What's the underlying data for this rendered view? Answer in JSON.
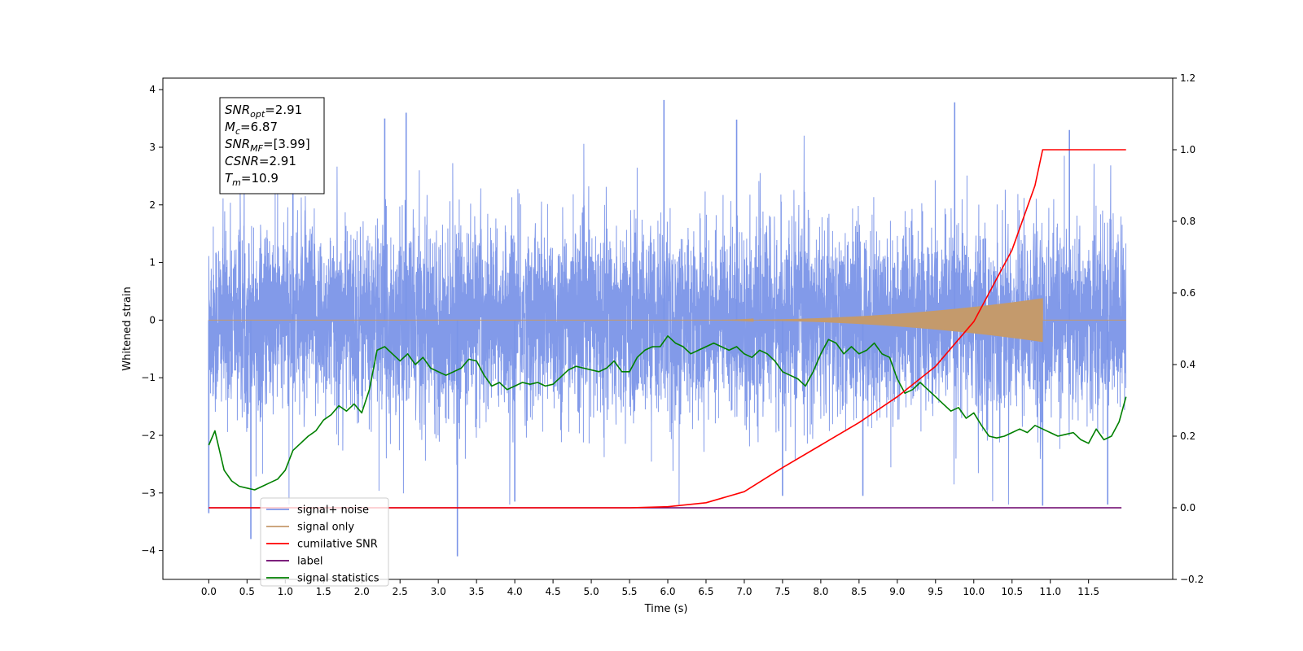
{
  "chart_data": {
    "type": "line",
    "xlabel": "Time (s)",
    "ylabel": "Whitened strain",
    "xlim": [
      -0.6,
      12.6
    ],
    "ylim": [
      -4.5,
      4.2
    ],
    "y2lim": [
      -0.2,
      1.2
    ],
    "xticks": [
      0.0,
      0.5,
      1.0,
      1.5,
      2.0,
      2.5,
      3.0,
      3.5,
      4.0,
      4.5,
      5.0,
      5.5,
      6.0,
      6.5,
      7.0,
      7.5,
      8.0,
      8.5,
      9.0,
      9.5,
      10.0,
      10.5,
      11.0,
      11.5
    ],
    "xtick_labels": [
      "0.0",
      "0.5",
      "1.0",
      "1.5",
      "2.0",
      "2.5",
      "3.0",
      "3.5",
      "4.0",
      "4.5",
      "5.0",
      "5.5",
      "6.0",
      "6.5",
      "7.0",
      "7.5",
      "8.0",
      "8.5",
      "9.0",
      "9.5",
      "10.0",
      "10.5",
      "11.0",
      "11.5"
    ],
    "yticks": [
      4,
      3,
      2,
      1,
      0,
      -1,
      -2,
      -3,
      -4
    ],
    "ytick_labels": [
      "4",
      "3",
      "2",
      "1",
      "0",
      "−1",
      "−2",
      "−3",
      "−4"
    ],
    "y2ticks": [
      1.2,
      1.0,
      0.8,
      0.6,
      0.4,
      0.2,
      0.0,
      -0.2
    ],
    "y2tick_labels": [
      "1.2",
      "1.0",
      "0.8",
      "0.6",
      "0.4",
      "0.2",
      "0.0",
      "−0.2"
    ],
    "legend_position": "lower-left",
    "info_box_position": "top-left",
    "info_box": [
      {
        "sym": "SNR",
        "sub": "opt",
        "val": "=2.91"
      },
      {
        "sym": "M",
        "sub": "c",
        "val": "=6.87"
      },
      {
        "sym": "SNR",
        "sub": "MF",
        "val": "=[3.99]"
      },
      {
        "sym": "CSNR",
        "sub": "",
        "val": "=2.91"
      },
      {
        "sym": "T",
        "sub": "m",
        "val": "=10.9"
      }
    ],
    "series": [
      {
        "name": "signal+ noise",
        "color": "#7b95e8",
        "axis": "left",
        "x_range": [
          0.0,
          11.99
        ],
        "noise_model": {
          "sigma": 0.8
        },
        "spikes": [
          {
            "x": 0.0,
            "y": -3.35
          },
          {
            "x": 0.55,
            "y": -3.8
          },
          {
            "x": 2.58,
            "y": 3.6
          },
          {
            "x": 3.25,
            "y": -4.1
          },
          {
            "x": 4.0,
            "y": -3.15
          },
          {
            "x": 5.95,
            "y": 3.82
          },
          {
            "x": 6.9,
            "y": 3.48
          },
          {
            "x": 9.75,
            "y": 3.78
          },
          {
            "x": 10.9,
            "y": -3.22
          },
          {
            "x": 11.25,
            "y": 3.3
          },
          {
            "x": 11.75,
            "y": -3.2
          },
          {
            "x": 1.1,
            "y": 3.0
          },
          {
            "x": 2.3,
            "y": 3.5
          },
          {
            "x": 8.55,
            "y": -3.05
          },
          {
            "x": 7.5,
            "y": -3.05
          }
        ]
      },
      {
        "name": "signal only",
        "color": "#c49a6c",
        "axis": "left",
        "x_range": [
          0.0,
          11.99
        ],
        "envelope": {
          "start": 6.5,
          "end": 10.9,
          "peak_amp": 0.38
        }
      },
      {
        "name": "cumilative SNR",
        "color": "#ff0000",
        "axis": "right",
        "x": [
          0.0,
          5.0,
          5.5,
          6.0,
          6.5,
          7.0,
          7.5,
          8.0,
          8.5,
          9.0,
          9.5,
          10.0,
          10.5,
          10.8,
          10.9,
          11.99
        ],
        "y": [
          0.0,
          0.0,
          0.0,
          0.003,
          0.014,
          0.045,
          0.112,
          0.175,
          0.238,
          0.31,
          0.395,
          0.52,
          0.72,
          0.9,
          1.0,
          1.0
        ]
      },
      {
        "name": "label",
        "color": "#6a006a",
        "axis": "right",
        "x": [
          0.0,
          11.93
        ],
        "y": [
          0.0,
          0.0
        ]
      },
      {
        "name": "signal statistics",
        "color": "#008000",
        "axis": "right",
        "x": [
          0.0,
          0.08,
          0.2,
          0.3,
          0.4,
          0.5,
          0.6,
          0.7,
          0.8,
          0.9,
          1.0,
          1.1,
          1.2,
          1.3,
          1.4,
          1.5,
          1.6,
          1.7,
          1.8,
          1.9,
          2.0,
          2.1,
          2.2,
          2.3,
          2.4,
          2.5,
          2.6,
          2.7,
          2.8,
          2.9,
          3.0,
          3.1,
          3.2,
          3.3,
          3.4,
          3.5,
          3.6,
          3.7,
          3.8,
          3.9,
          4.0,
          4.1,
          4.2,
          4.3,
          4.4,
          4.5,
          4.6,
          4.7,
          4.8,
          4.9,
          5.0,
          5.1,
          5.2,
          5.3,
          5.4,
          5.5,
          5.6,
          5.7,
          5.8,
          5.9,
          6.0,
          6.1,
          6.2,
          6.3,
          6.4,
          6.5,
          6.6,
          6.7,
          6.8,
          6.9,
          7.0,
          7.1,
          7.2,
          7.3,
          7.4,
          7.5,
          7.6,
          7.7,
          7.8,
          7.9,
          8.0,
          8.1,
          8.2,
          8.3,
          8.4,
          8.5,
          8.6,
          8.7,
          8.8,
          8.9,
          9.0,
          9.1,
          9.2,
          9.3,
          9.4,
          9.5,
          9.6,
          9.7,
          9.8,
          9.9,
          10.0,
          10.1,
          10.2,
          10.3,
          10.4,
          10.5,
          10.6,
          10.7,
          10.8,
          10.9,
          11.0,
          11.1,
          11.2,
          11.3,
          11.4,
          11.5,
          11.6,
          11.7,
          11.8,
          11.9,
          11.99
        ],
        "y": [
          0.175,
          0.215,
          0.105,
          0.075,
          0.06,
          0.055,
          0.05,
          0.06,
          0.07,
          0.08,
          0.105,
          0.16,
          0.18,
          0.2,
          0.215,
          0.245,
          0.26,
          0.285,
          0.27,
          0.29,
          0.265,
          0.33,
          0.44,
          0.45,
          0.43,
          0.41,
          0.43,
          0.4,
          0.42,
          0.39,
          0.38,
          0.37,
          0.38,
          0.39,
          0.415,
          0.41,
          0.37,
          0.34,
          0.35,
          0.33,
          0.34,
          0.35,
          0.345,
          0.35,
          0.34,
          0.345,
          0.365,
          0.385,
          0.395,
          0.39,
          0.385,
          0.38,
          0.39,
          0.41,
          0.38,
          0.38,
          0.42,
          0.44,
          0.45,
          0.45,
          0.48,
          0.46,
          0.45,
          0.43,
          0.44,
          0.45,
          0.46,
          0.45,
          0.44,
          0.45,
          0.43,
          0.42,
          0.44,
          0.43,
          0.41,
          0.38,
          0.37,
          0.36,
          0.34,
          0.38,
          0.43,
          0.47,
          0.46,
          0.43,
          0.45,
          0.43,
          0.44,
          0.46,
          0.43,
          0.42,
          0.36,
          0.32,
          0.33,
          0.35,
          0.33,
          0.31,
          0.29,
          0.27,
          0.28,
          0.25,
          0.265,
          0.23,
          0.2,
          0.195,
          0.2,
          0.21,
          0.22,
          0.21,
          0.23,
          0.22,
          0.21,
          0.2,
          0.205,
          0.21,
          0.19,
          0.18,
          0.22,
          0.19,
          0.2,
          0.24,
          0.31
        ]
      }
    ]
  }
}
